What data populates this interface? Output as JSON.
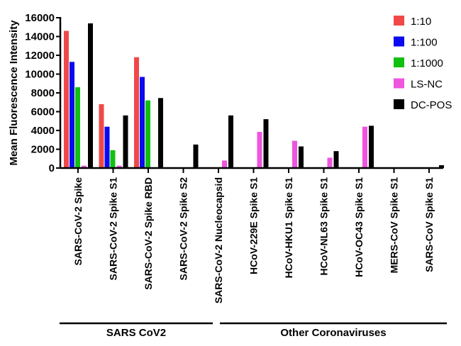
{
  "chart_data": {
    "type": "bar",
    "title": "",
    "xlabel": "",
    "ylabel": "Mean Fluorescence Intensity",
    "ylim": [
      0,
      16000
    ],
    "yticks": [
      0,
      2000,
      4000,
      6000,
      8000,
      10000,
      12000,
      14000,
      16000
    ],
    "grid": false,
    "legend_position": "top-right",
    "categories": [
      "SARS-CoV-2 Spike",
      "SARS-CoV-2 Spike S1",
      "SARS-CoV-2 Spike RBD",
      "SARS-CoV-2 Spike S2",
      "SARS-CoV-2 Nucleocapsid",
      "HCoV-229E Spike S1",
      "HCoV-HKU1 Spike S1",
      "HCoV-NL63 Spike S1",
      "HCoV-OC43 Spike S1",
      "MERS-CoV Spike S1",
      "SARS-CoV Spike S1"
    ],
    "series": [
      {
        "name": "1:10",
        "color": "#f04848",
        "values": [
          14600,
          6800,
          11800,
          0,
          0,
          0,
          0,
          0,
          0,
          0,
          0
        ]
      },
      {
        "name": "1:100",
        "color": "#0a0af0",
        "values": [
          11300,
          4400,
          9700,
          0,
          0,
          0,
          0,
          0,
          0,
          0,
          0
        ]
      },
      {
        "name": "1:1000",
        "color": "#12c012",
        "values": [
          8600,
          1900,
          7200,
          0,
          0,
          0,
          0,
          0,
          0,
          0,
          0
        ]
      },
      {
        "name": "LS-NC",
        "color": "#ee55dd",
        "values": [
          250,
          250,
          0,
          0,
          800,
          3850,
          2900,
          1100,
          4400,
          0,
          0
        ]
      },
      {
        "name": "DC-POS",
        "color": "#000000",
        "values": [
          15400,
          5600,
          7450,
          2500,
          5600,
          5200,
          2300,
          1800,
          4500,
          0,
          300
        ]
      }
    ],
    "groups": [
      {
        "label": "SARS CoV2",
        "categories": [
          0,
          4
        ]
      },
      {
        "label": "Other Coronaviruses",
        "categories": [
          5,
          10
        ]
      }
    ]
  }
}
